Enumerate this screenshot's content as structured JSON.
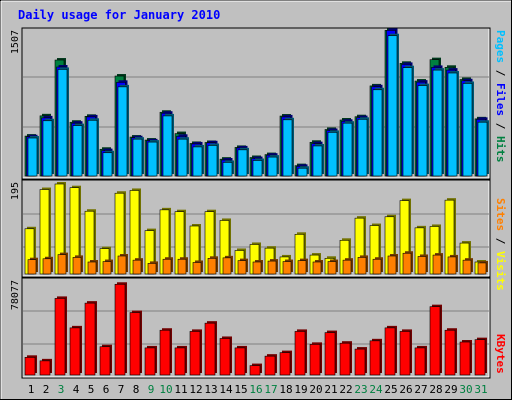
{
  "chart_data": [
    {
      "type": "bar",
      "title": "Daily usage for January 2010",
      "ymax_label": "1507",
      "legend": [
        "Pages",
        "Files",
        "Hits"
      ],
      "categories": [
        "1",
        "2",
        "3",
        "4",
        "5",
        "6",
        "7",
        "8",
        "9",
        "10",
        "11",
        "12",
        "13",
        "14",
        "15",
        "16",
        "17",
        "18",
        "19",
        "20",
        "21",
        "22",
        "23",
        "24",
        "25",
        "26",
        "27",
        "28",
        "29",
        "30",
        "31"
      ],
      "weekend_days": [
        "3",
        "9",
        "10",
        "16",
        "17",
        "23",
        "24",
        "30",
        "31"
      ],
      "ylim": [
        0,
        1507
      ],
      "series": [
        {
          "name": "Hits",
          "color": "#008040",
          "values": [
            412,
            621,
            1197,
            555,
            616,
            276,
            1032,
            402,
            371,
            658,
            438,
            336,
            346,
            174,
            295,
            191,
            221,
            619,
            107,
            348,
            480,
            578,
            612,
            930,
            1503,
            1163,
            980,
            1201,
            1122,
            996,
            590
          ]
        },
        {
          "name": "Files",
          "color": "#0000ff",
          "values": [
            405,
            600,
            1125,
            545,
            610,
            262,
            967,
            395,
            363,
            648,
            410,
            331,
            343,
            165,
            290,
            180,
            215,
            610,
            100,
            334,
            470,
            565,
            603,
            921,
            1503,
            1152,
            969,
            1121,
            1093,
            983,
            585
          ]
        },
        {
          "name": "Pages",
          "color": "#00c0ff",
          "values": [
            392,
            570,
            1100,
            520,
            575,
            240,
            920,
            380,
            350,
            620,
            380,
            300,
            315,
            140,
            270,
            160,
            195,
            580,
            80,
            310,
            450,
            545,
            585,
            890,
            1448,
            1118,
            933,
            1093,
            1063,
            955,
            555
          ]
        }
      ]
    },
    {
      "type": "bar",
      "ymax_label": "195",
      "legend": [
        "Sites",
        "Visits"
      ],
      "categories": [
        "1",
        "2",
        "3",
        "4",
        "5",
        "6",
        "7",
        "8",
        "9",
        "10",
        "11",
        "12",
        "13",
        "14",
        "15",
        "16",
        "17",
        "18",
        "19",
        "20",
        "21",
        "22",
        "23",
        "24",
        "25",
        "26",
        "27",
        "28",
        "29",
        "30",
        "31"
      ],
      "ylim": [
        0,
        195
      ],
      "series": [
        {
          "name": "Visits",
          "color": "#ffff00",
          "values": [
            98,
            183,
            195,
            187,
            136,
            55,
            175,
            181,
            94,
            139,
            135,
            104,
            135,
            116,
            51,
            64,
            56,
            37,
            86,
            41,
            34,
            73,
            121,
            105,
            124,
            159,
            100,
            103,
            160,
            67,
            26
          ]
        },
        {
          "name": "Sites",
          "color": "#ff8000",
          "values": [
            31,
            33,
            42,
            36,
            26,
            27,
            39,
            30,
            23,
            32,
            32,
            25,
            34,
            35,
            29,
            26,
            28,
            27,
            29,
            26,
            27,
            30,
            36,
            32,
            39,
            45,
            38,
            41,
            37,
            30,
            24
          ]
        }
      ]
    },
    {
      "type": "bar",
      "ymax_label": "78077",
      "legend": [
        "KBytes"
      ],
      "categories": [
        "1",
        "2",
        "3",
        "4",
        "5",
        "6",
        "7",
        "8",
        "9",
        "10",
        "11",
        "12",
        "13",
        "14",
        "15",
        "16",
        "17",
        "18",
        "19",
        "20",
        "21",
        "22",
        "23",
        "24",
        "25",
        "26",
        "27",
        "28",
        "29",
        "30",
        "31"
      ],
      "ylim": [
        0,
        78077
      ],
      "series": [
        {
          "name": "KBytes",
          "color": "#ff0000",
          "values": [
            15000,
            12000,
            65000,
            40000,
            61000,
            24000,
            77000,
            53000,
            23000,
            38000,
            23000,
            37000,
            44000,
            31000,
            23000,
            8000,
            16000,
            19000,
            37000,
            26000,
            36000,
            27000,
            22000,
            29000,
            40000,
            37000,
            23000,
            58000,
            38000,
            28000,
            30000
          ]
        }
      ]
    }
  ]
}
